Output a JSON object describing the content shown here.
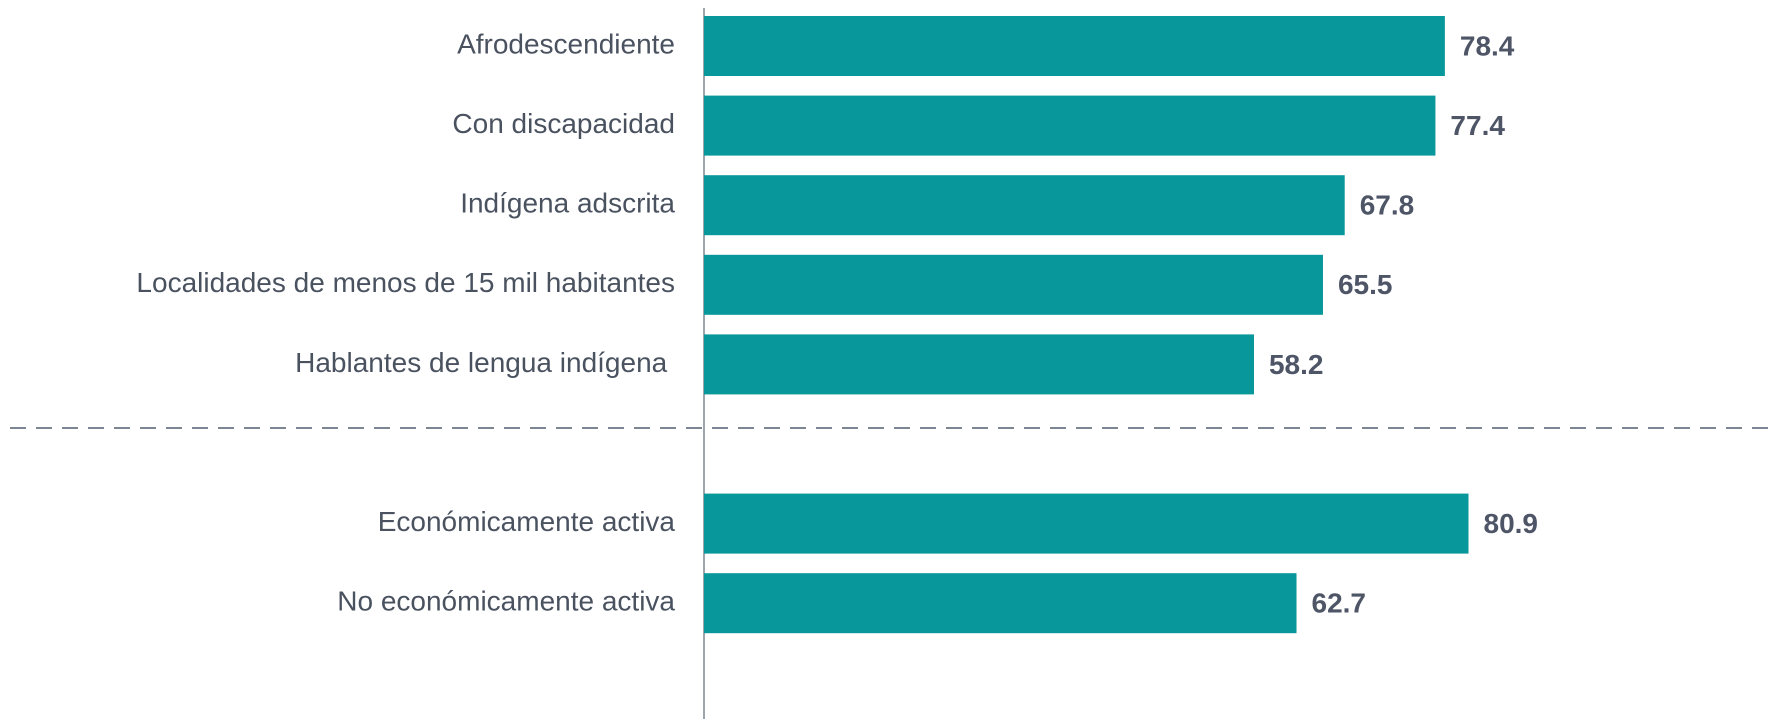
{
  "chart_data": {
    "type": "bar",
    "orientation": "horizontal",
    "categories": [
      "Afrodescendiente",
      "Con discapacidad",
      "Indígena adscrita",
      "Localidades de menos de 15 mil habitantes",
      "Hablantes de lengua indígena ",
      null,
      "Económicamente activa",
      "No económicamente activa"
    ],
    "values": [
      78.4,
      77.4,
      67.8,
      65.5,
      58.2,
      null,
      80.9,
      62.7
    ],
    "color": "#08979a",
    "xlim": [
      0,
      100
    ]
  }
}
